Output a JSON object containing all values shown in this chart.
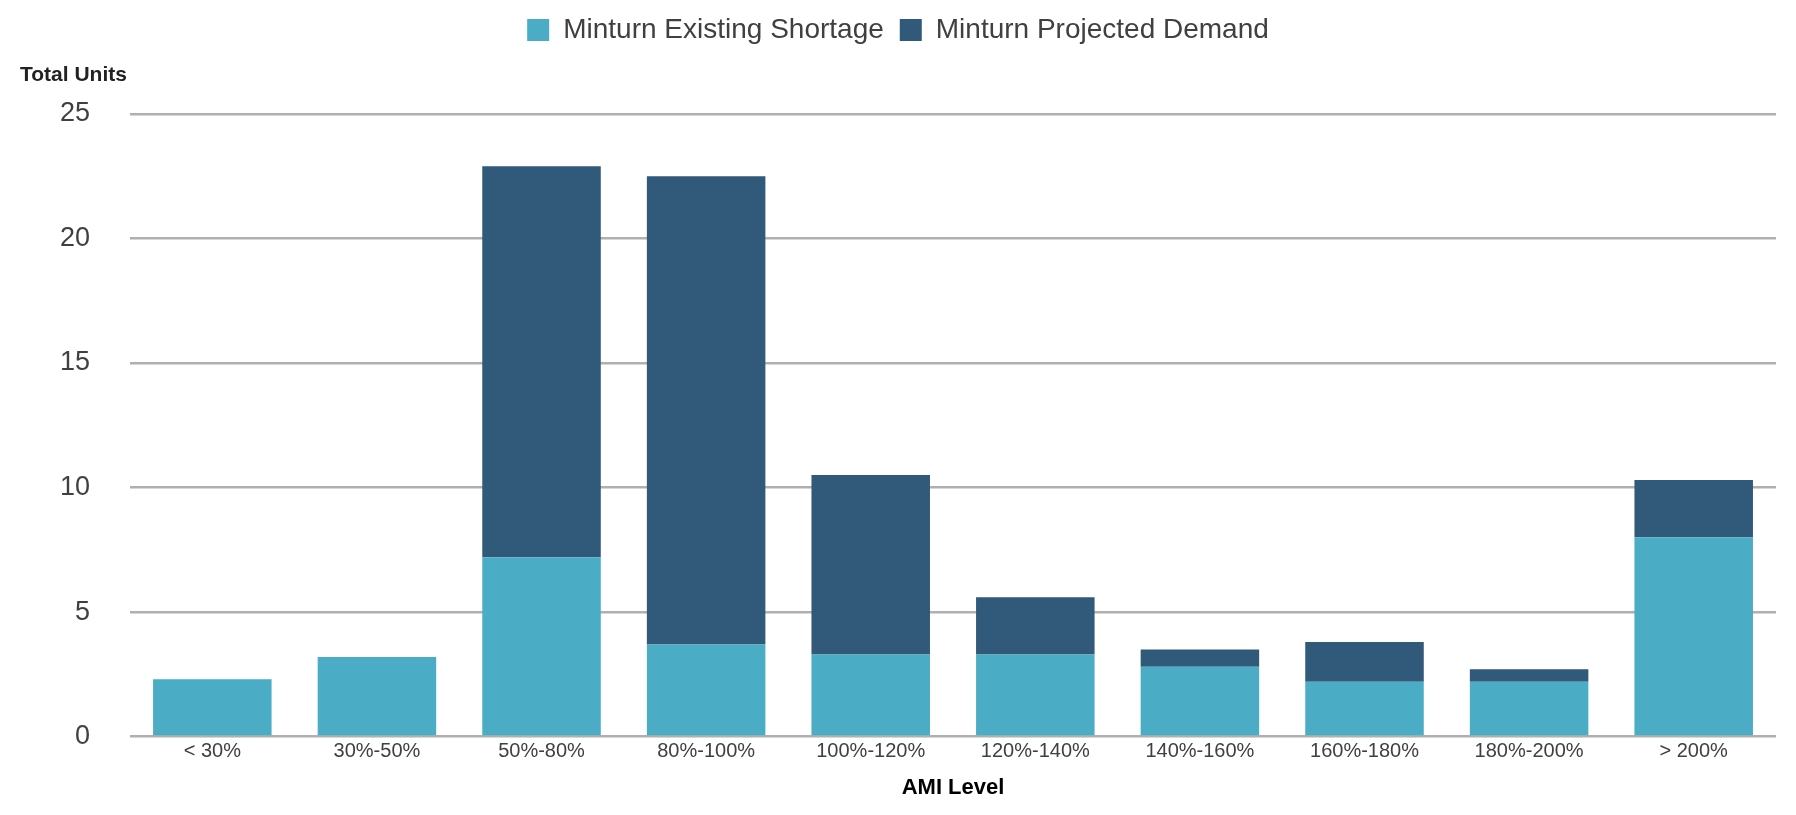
{
  "chart_data": {
    "type": "bar",
    "stacked": true,
    "xlabel": "AMI Level",
    "ylabel": "Total Units",
    "categories": [
      "< 30%",
      "30%-50%",
      "50%-80%",
      "80%-100%",
      "100%-120%",
      "120%-140%",
      "140%-160%",
      "160%-180%",
      "180%-200%",
      "> 200%"
    ],
    "series": [
      {
        "name": "Minturn Existing Shortage",
        "color": "#4bacc6",
        "values": [
          2.3,
          3.2,
          7.2,
          3.7,
          3.3,
          3.3,
          2.8,
          2.2,
          2.2,
          8.0
        ]
      },
      {
        "name": "Minturn Projected Demand",
        "color": "#31597a",
        "values": [
          null,
          null,
          15.7,
          18.8,
          7.2,
          2.3,
          0.7,
          1.6,
          0.5,
          2.3
        ]
      }
    ],
    "ylim": [
      0,
      25
    ],
    "yticks": [
      0,
      5,
      10,
      15,
      20,
      25
    ],
    "grid": "y",
    "legend": "top"
  }
}
